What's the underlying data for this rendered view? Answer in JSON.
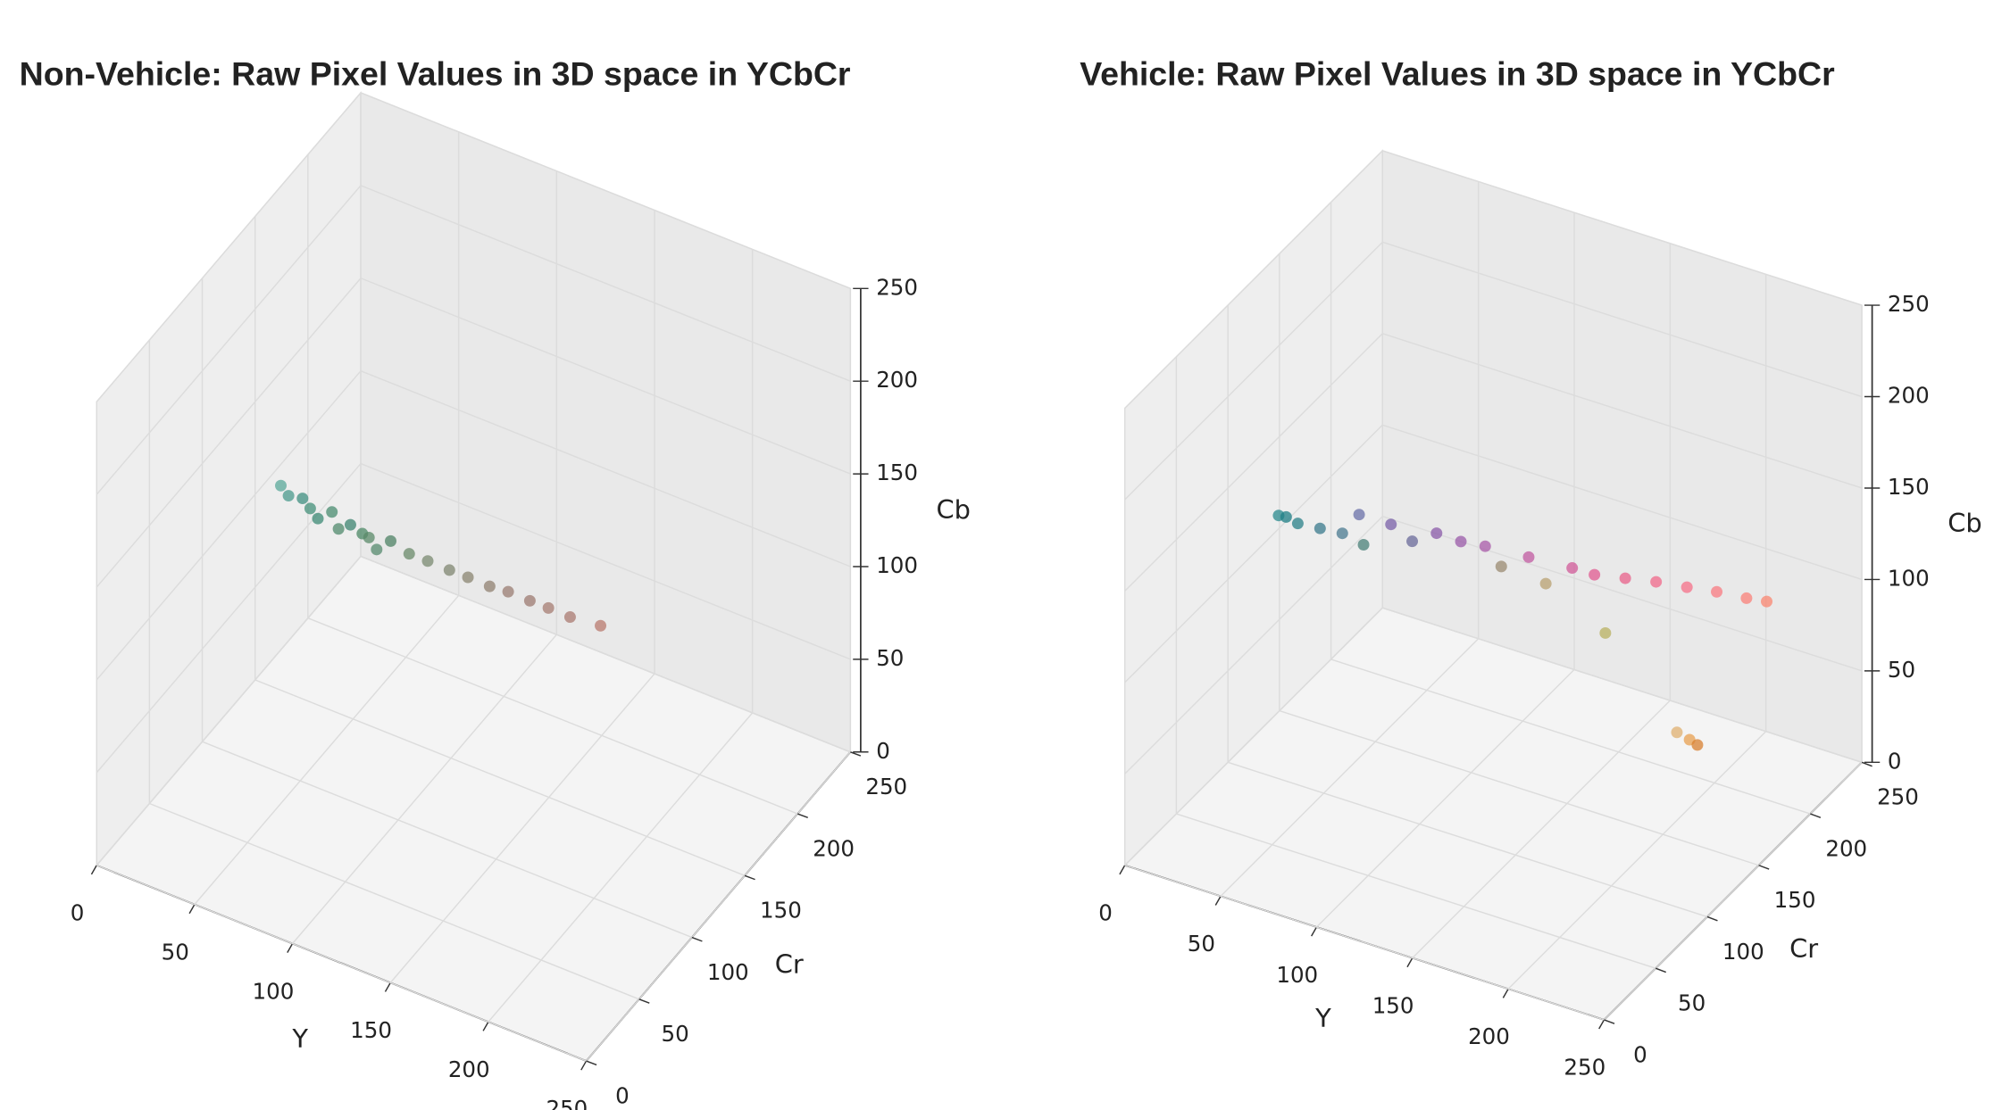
{
  "chart_data": [
    {
      "type": "scatter3d",
      "title": "Non-Vehicle: Raw Pixel Values in 3D space in YCbCr",
      "xlabel": "Y",
      "ylabel": "Cr",
      "zlabel": "Cb",
      "xlim": [
        0,
        250
      ],
      "ylim": [
        0,
        250
      ],
      "zlim": [
        0,
        250
      ],
      "xticks": [
        0,
        50,
        100,
        150,
        200,
        250
      ],
      "yticks": [
        0,
        50,
        100,
        150,
        200,
        250
      ],
      "zticks": [
        0,
        50,
        100,
        150,
        200,
        250
      ],
      "x": [
        25,
        30,
        35,
        40,
        45,
        50,
        55,
        60,
        65,
        70,
        75,
        80,
        90,
        100,
        110,
        120,
        130,
        140,
        150,
        160,
        170,
        185
      ],
      "y": [
        128,
        126,
        130,
        128,
        126,
        130,
        127,
        129,
        131,
        128,
        126,
        130,
        129,
        128,
        130,
        129,
        131,
        130,
        132,
        131,
        133,
        134
      ],
      "z": [
        130,
        128,
        126,
        124,
        122,
        125,
        120,
        123,
        119,
        121,
        118,
        122,
        120,
        121,
        119,
        120,
        118,
        120,
        118,
        119,
        117,
        118
      ],
      "colors": [
        "#5aa89a",
        "#4a9a8c",
        "#3f8f80",
        "#44907a",
        "#3c8a74",
        "#4a8c70",
        "#508a6c",
        "#3e8470",
        "#4c8866",
        "#5a8a68",
        "#568a6e",
        "#4e8264",
        "#6a8a6a",
        "#7a8a70",
        "#7f8670",
        "#8a8470",
        "#908070",
        "#9a7c72",
        "#9c7a70",
        "#a67c72",
        "#aa7a70",
        "#b87a6e"
      ]
    },
    {
      "type": "scatter3d",
      "title": "Vehicle: Raw Pixel Values in 3D space in YCbCr",
      "xlabel": "Y",
      "ylabel": "Cr",
      "zlabel": "Cb",
      "xlim": [
        0,
        250
      ],
      "ylim": [
        0,
        250
      ],
      "zlim": [
        0,
        250
      ],
      "xticks": [
        0,
        50,
        100,
        150,
        200,
        250
      ],
      "yticks": [
        0,
        50,
        100,
        150,
        200,
        250
      ],
      "zticks": [
        0,
        50,
        100,
        150,
        200,
        250
      ],
      "x": [
        20,
        25,
        30,
        40,
        50,
        55,
        60,
        70,
        80,
        90,
        100,
        110,
        120,
        130,
        140,
        150,
        160,
        175,
        190,
        205,
        220,
        235,
        245,
        170,
        210,
        215,
        218
      ],
      "y": [
        112,
        110,
        112,
        115,
        118,
        125,
        120,
        128,
        130,
        135,
        140,
        145,
        142,
        150,
        148,
        155,
        158,
        160,
        162,
        164,
        165,
        166,
        167,
        150,
        145,
        148,
        150
      ],
      "z": [
        135,
        137,
        134,
        133,
        132,
        140,
        128,
        138,
        131,
        136,
        132,
        130,
        124,
        128,
        118,
        126,
        124,
        126,
        128,
        129,
        131,
        132,
        133,
        100,
        62,
        58,
        55
      ],
      "colors": [
        "#2a8a8e",
        "#1f7f86",
        "#2a8088",
        "#3a7a8c",
        "#4a7a90",
        "#6a70a8",
        "#4a8078",
        "#7a60a8",
        "#6a6a9a",
        "#8a5aa8",
        "#9a5aa8",
        "#a85aa8",
        "#9a8a70",
        "#c05aa0",
        "#b8a070",
        "#d05a98",
        "#e05a90",
        "#e8608a",
        "#f0688a",
        "#f57088",
        "#f87a80",
        "#fa8078",
        "#fa8670",
        "#b8b060",
        "#e0b070",
        "#e8a050",
        "#d88030"
      ]
    }
  ]
}
